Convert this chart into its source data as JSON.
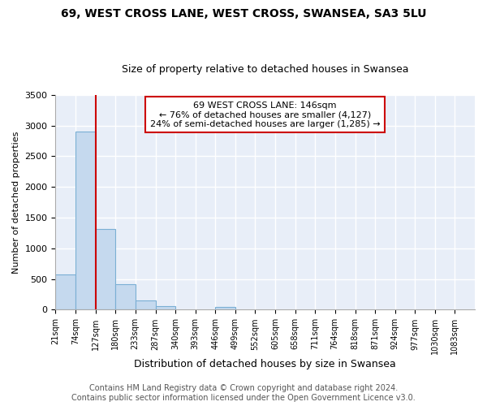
{
  "title1": "69, WEST CROSS LANE, WEST CROSS, SWANSEA, SA3 5LU",
  "title2": "Size of property relative to detached houses in Swansea",
  "xlabel": "Distribution of detached houses by size in Swansea",
  "ylabel": "Number of detached properties",
  "footer1": "Contains HM Land Registry data © Crown copyright and database right 2024.",
  "footer2": "Contains public sector information licensed under the Open Government Licence v3.0.",
  "bin_labels": [
    "21sqm",
    "74sqm",
    "127sqm",
    "180sqm",
    "233sqm",
    "287sqm",
    "340sqm",
    "393sqm",
    "446sqm",
    "499sqm",
    "552sqm",
    "605sqm",
    "658sqm",
    "711sqm",
    "764sqm",
    "818sqm",
    "871sqm",
    "924sqm",
    "977sqm",
    "1030sqm",
    "1083sqm"
  ],
  "bar_values": [
    580,
    2900,
    1310,
    420,
    155,
    65,
    0,
    0,
    50,
    0,
    0,
    0,
    0,
    0,
    0,
    0,
    0,
    0,
    0,
    0
  ],
  "bar_color": "#c5d9ee",
  "bar_edgecolor": "#7aafd4",
  "background_color": "#e8eef8",
  "grid_color": "#ffffff",
  "annotation_box_text": "69 WEST CROSS LANE: 146sqm\n← 76% of detached houses are smaller (4,127)\n24% of semi-detached houses are larger (1,285) →",
  "annotation_box_color": "#ffffff",
  "annotation_box_edgecolor": "#cc0000",
  "vline_color": "#cc0000",
  "ylim": [
    0,
    3500
  ],
  "yticks": [
    0,
    500,
    1000,
    1500,
    2000,
    2500,
    3000,
    3500
  ],
  "title1_fontsize": 10,
  "title2_fontsize": 9,
  "xlabel_fontsize": 9,
  "ylabel_fontsize": 8,
  "footer_fontsize": 7
}
